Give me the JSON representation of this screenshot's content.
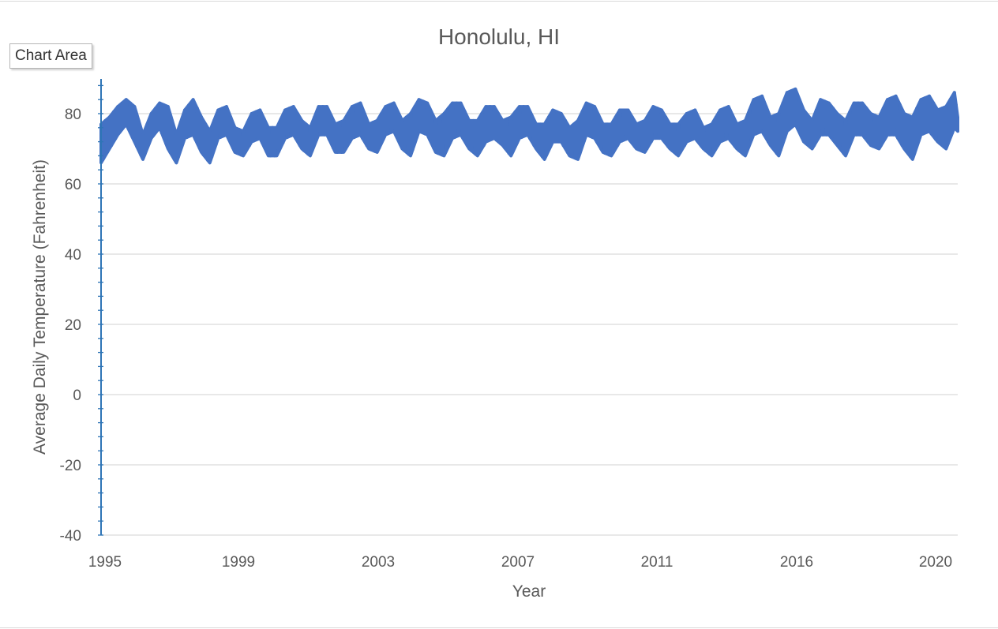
{
  "tooltip": {
    "label": "Chart Area"
  },
  "chart_data": {
    "type": "line",
    "title": "Honolulu, HI",
    "xlabel": "Year",
    "ylabel": "Average Daily Temperature (Fahrenheit)",
    "ylim": [
      -40,
      90
    ],
    "y_ticks": [
      -40,
      -20,
      0,
      20,
      40,
      60,
      80
    ],
    "x_tick_labels": [
      "1995",
      "1999",
      "2003",
      "2007",
      "2011",
      "2016",
      "2020"
    ],
    "x_range_years": [
      1995.0,
      2020.6
    ],
    "grid": "horizontal",
    "legend": "none",
    "series": [
      {
        "color": "#4472c4",
        "x": [
          1995.0,
          1995.25,
          1995.5,
          1995.75,
          1996.0,
          1996.25,
          1996.5,
          1996.75,
          1997.0,
          1997.25,
          1997.5,
          1997.75,
          1998.0,
          1998.25,
          1998.5,
          1998.75,
          1999.0,
          1999.25,
          1999.5,
          1999.75,
          2000.0,
          2000.25,
          2000.5,
          2000.75,
          2001.0,
          2001.25,
          2001.5,
          2001.75,
          2002.0,
          2002.25,
          2002.5,
          2002.75,
          2003.0,
          2003.25,
          2003.5,
          2003.75,
          2004.0,
          2004.25,
          2004.5,
          2004.75,
          2005.0,
          2005.25,
          2005.5,
          2005.75,
          2006.0,
          2006.25,
          2006.5,
          2006.75,
          2007.0,
          2007.25,
          2007.5,
          2007.75,
          2008.0,
          2008.25,
          2008.5,
          2008.75,
          2009.0,
          2009.25,
          2009.5,
          2009.75,
          2010.0,
          2010.25,
          2010.5,
          2010.75,
          2011.0,
          2011.25,
          2011.5,
          2011.75,
          2012.0,
          2012.25,
          2012.5,
          2012.75,
          2013.0,
          2013.25,
          2013.5,
          2013.75,
          2014.0,
          2014.25,
          2014.5,
          2014.75,
          2015.0,
          2015.25,
          2015.5,
          2015.75,
          2016.0,
          2016.25,
          2016.5,
          2016.75,
          2017.0,
          2017.25,
          2017.5,
          2017.75,
          2018.0,
          2018.25,
          2018.5,
          2018.75,
          2019.0,
          2019.25,
          2019.5,
          2019.75,
          2020.0,
          2020.25,
          2020.5,
          2020.6
        ],
        "y_max": [
          77,
          79,
          82,
          84,
          82,
          74,
          80,
          83,
          82,
          74,
          81,
          84,
          79,
          75,
          81,
          82,
          76,
          75,
          80,
          81,
          76,
          76,
          81,
          82,
          78,
          76,
          82,
          82,
          77,
          78,
          82,
          83,
          77,
          78,
          82,
          83,
          78,
          80,
          84,
          83,
          78,
          80,
          83,
          83,
          78,
          78,
          82,
          82,
          78,
          79,
          82,
          82,
          77,
          77,
          81,
          80,
          76,
          78,
          83,
          82,
          77,
          77,
          81,
          81,
          77,
          78,
          82,
          81,
          77,
          77,
          80,
          81,
          76,
          77,
          81,
          82,
          77,
          78,
          84,
          85,
          79,
          80,
          86,
          87,
          81,
          78,
          84,
          83,
          80,
          78,
          83,
          83,
          80,
          79,
          84,
          85,
          80,
          79,
          84,
          85,
          81,
          82,
          86,
          79
        ],
        "y_min": [
          66,
          70,
          74,
          77,
          72,
          67,
          73,
          76,
          70,
          66,
          73,
          74,
          69,
          66,
          73,
          74,
          69,
          68,
          72,
          73,
          68,
          68,
          73,
          74,
          70,
          68,
          74,
          74,
          69,
          69,
          73,
          74,
          70,
          69,
          74,
          75,
          70,
          68,
          75,
          74,
          69,
          68,
          73,
          74,
          70,
          68,
          72,
          73,
          71,
          68,
          73,
          74,
          70,
          67,
          72,
          72,
          68,
          67,
          74,
          73,
          69,
          68,
          72,
          73,
          70,
          69,
          73,
          73,
          70,
          68,
          72,
          73,
          70,
          68,
          72,
          73,
          70,
          68,
          74,
          75,
          71,
          68,
          75,
          77,
          72,
          70,
          74,
          74,
          71,
          68,
          74,
          74,
          71,
          70,
          74,
          74,
          70,
          67,
          74,
          75,
          72,
          70,
          76,
          75
        ]
      }
    ]
  }
}
